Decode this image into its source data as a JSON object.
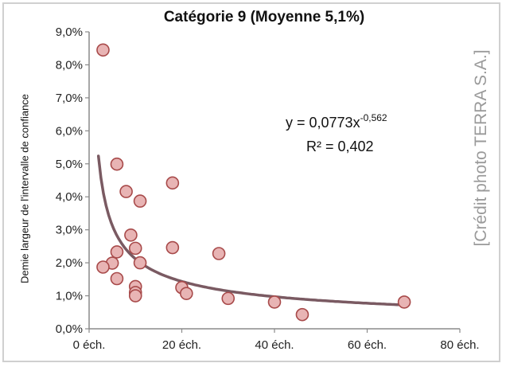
{
  "chart_data": {
    "type": "scatter",
    "title": "Catégorie 9 (Moyenne 5,1%)",
    "xlabel": "",
    "ylabel": "Demie largeur de l'intervalle de confiance",
    "xlim": [
      0,
      80
    ],
    "ylim": [
      0,
      0.09
    ],
    "x_ticks": [
      {
        "value": 0,
        "label": "0 éch."
      },
      {
        "value": 20,
        "label": "20 éch."
      },
      {
        "value": 40,
        "label": "40 éch."
      },
      {
        "value": 60,
        "label": "60 éch."
      },
      {
        "value": 80,
        "label": "80 éch."
      }
    ],
    "y_ticks": [
      {
        "value": 0.0,
        "label": "0,0%"
      },
      {
        "value": 0.01,
        "label": "1,0%"
      },
      {
        "value": 0.02,
        "label": "2,0%"
      },
      {
        "value": 0.03,
        "label": "3,0%"
      },
      {
        "value": 0.04,
        "label": "4,0%"
      },
      {
        "value": 0.05,
        "label": "5,0%"
      },
      {
        "value": 0.06,
        "label": "6,0%"
      },
      {
        "value": 0.07,
        "label": "7,0%"
      },
      {
        "value": 0.08,
        "label": "8,0%"
      },
      {
        "value": 0.09,
        "label": "9,0%"
      }
    ],
    "grid": false,
    "points": [
      {
        "x": 3,
        "y": 0.0845
      },
      {
        "x": 6,
        "y": 0.0499
      },
      {
        "x": 8,
        "y": 0.0416
      },
      {
        "x": 11,
        "y": 0.0387
      },
      {
        "x": 18,
        "y": 0.0442
      },
      {
        "x": 9,
        "y": 0.0284
      },
      {
        "x": 6,
        "y": 0.0233
      },
      {
        "x": 10,
        "y": 0.0244
      },
      {
        "x": 18,
        "y": 0.0246
      },
      {
        "x": 28,
        "y": 0.0228
      },
      {
        "x": 5,
        "y": 0.0199
      },
      {
        "x": 11,
        "y": 0.02
      },
      {
        "x": 3,
        "y": 0.0187
      },
      {
        "x": 6,
        "y": 0.0152
      },
      {
        "x": 10,
        "y": 0.0128
      },
      {
        "x": 10,
        "y": 0.011
      },
      {
        "x": 10,
        "y": 0.01
      },
      {
        "x": 20,
        "y": 0.0125
      },
      {
        "x": 21,
        "y": 0.0107
      },
      {
        "x": 30,
        "y": 0.0092
      },
      {
        "x": 40,
        "y": 0.0081
      },
      {
        "x": 46,
        "y": 0.0043
      },
      {
        "x": 68,
        "y": 0.0081
      }
    ],
    "trendline": {
      "type": "power",
      "a": 0.0773,
      "b": -0.562,
      "x_from": 2,
      "x_to": 68
    },
    "equation_text": "y = 0,0773x",
    "equation_exponent": "-0,562",
    "r2_text": "R² = 0,402",
    "colors": {
      "marker_fill": "#e8b4b4",
      "marker_stroke": "#a84a4a",
      "trendline": "#7a5a62"
    }
  },
  "watermark": "[Crédit photo TERRA S.A.]"
}
